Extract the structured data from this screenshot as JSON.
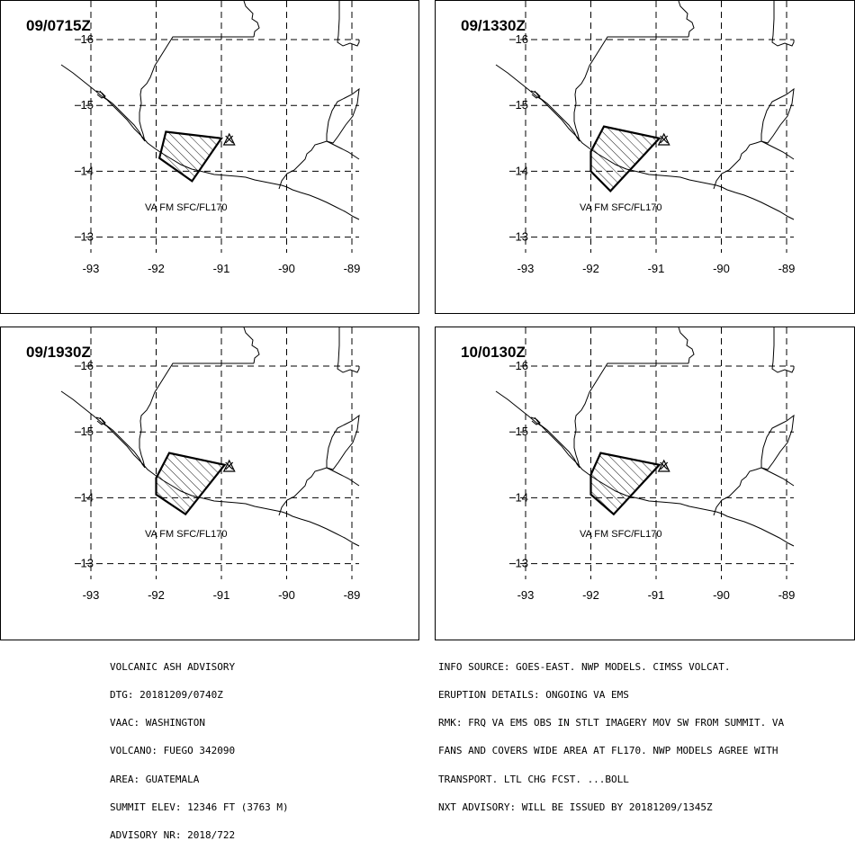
{
  "panels": [
    {
      "title": "09/0715Z",
      "va_label": "VA FM SFC/FL170",
      "polygon": [
        [
          -91.85,
          14.6
        ],
        [
          -91.0,
          14.5
        ],
        [
          -91.45,
          13.85
        ],
        [
          -91.95,
          14.2
        ]
      ]
    },
    {
      "title": "09/1330Z",
      "va_label": "VA FM SFC/FL170",
      "polygon": [
        [
          -91.8,
          14.68
        ],
        [
          -90.95,
          14.5
        ],
        [
          -91.7,
          13.7
        ],
        [
          -92.0,
          14.0
        ],
        [
          -92.0,
          14.3
        ]
      ]
    },
    {
      "title": "09/1930Z",
      "va_label": "VA FM SFC/FL170",
      "polygon": [
        [
          -91.8,
          14.68
        ],
        [
          -90.95,
          14.5
        ],
        [
          -91.55,
          13.75
        ],
        [
          -92.0,
          14.05
        ],
        [
          -92.0,
          14.3
        ]
      ]
    },
    {
      "title": "10/0130Z",
      "va_label": "VA FM SFC/FL170",
      "polygon": [
        [
          -91.85,
          14.68
        ],
        [
          -90.95,
          14.5
        ],
        [
          -91.65,
          13.75
        ],
        [
          -92.0,
          14.05
        ],
        [
          -92.0,
          14.35
        ]
      ]
    }
  ],
  "map": {
    "lon_ticks": [
      "-93",
      "-92",
      "-91",
      "-90",
      "-89"
    ],
    "lat_ticks": [
      "16",
      "15",
      "14",
      "13"
    ],
    "lon_values": [
      -93,
      -92,
      -91,
      -90,
      -89
    ],
    "lat_values": [
      16,
      15,
      14,
      13
    ],
    "volcano": {
      "name": "FUEGO",
      "lon": -90.88,
      "lat": 14.47
    }
  },
  "footer_left": [
    "VOLCANIC ASH ADVISORY",
    "DTG: 20181209/0740Z",
    "VAAC: WASHINGTON",
    "VOLCANO: FUEGO 342090",
    "AREA: GUATEMALA",
    "SUMMIT ELEV: 12346 FT (3763 M)",
    "ADVISORY NR: 2018/722"
  ],
  "footer_right": [
    "INFO SOURCE: GOES-EAST. NWP MODELS. CIMSS VOLCAT.",
    "ERUPTION DETAILS: ONGOING VA EMS",
    "RMK: FRQ VA EMS OBS IN STLT IMAGERY MOV SW FROM SUMMIT. VA",
    "FANS AND COVERS WIDE AREA AT FL170. NWP MODELS AGREE WITH",
    "TRANSPORT. LTL CHG FCST. ...BOLL",
    "NXT ADVISORY: WILL BE ISSUED BY 20181209/1345Z"
  ]
}
